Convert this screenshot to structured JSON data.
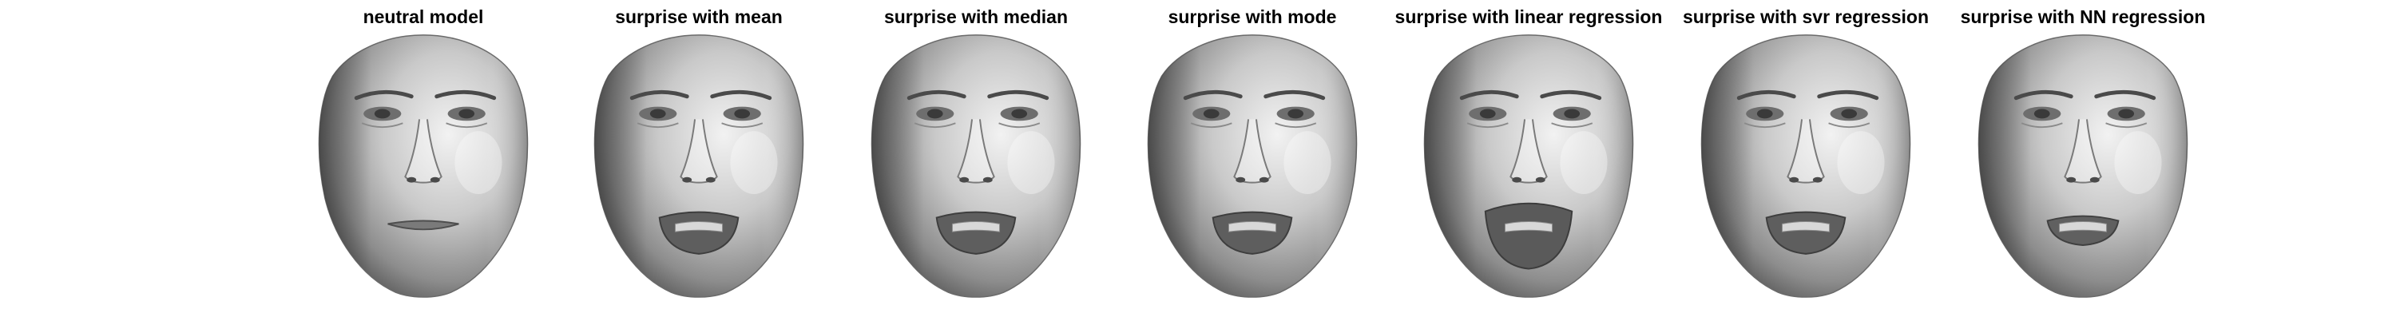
{
  "figure": {
    "panels": [
      {
        "title": "neutral model",
        "mouth": "closed"
      },
      {
        "title": "surprise with mean",
        "mouth": "open"
      },
      {
        "title": "surprise with median",
        "mouth": "open"
      },
      {
        "title": "surprise with mode",
        "mouth": "open"
      },
      {
        "title": "surprise with linear regression",
        "mouth": "wide-open"
      },
      {
        "title": "surprise with svr regression",
        "mouth": "open"
      },
      {
        "title": "surprise with NN regression",
        "mouth": "half-open"
      }
    ],
    "colors": {
      "background": "#ffffff",
      "title": "#000000",
      "face_light": "#e6e6e6",
      "face_mid": "#a8a8a8",
      "face_dark": "#5a5a5a"
    }
  }
}
